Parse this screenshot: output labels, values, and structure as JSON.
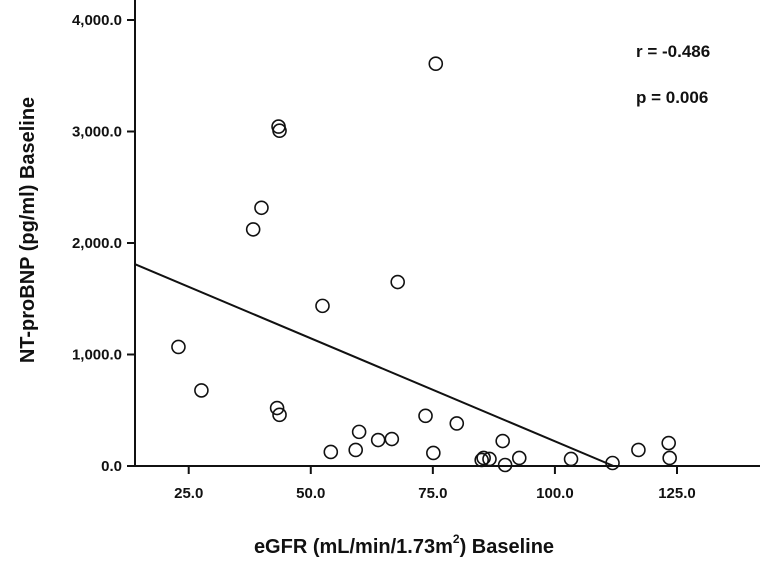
{
  "chart_data": {
    "type": "scatter",
    "xlabel": "eGFR (mL/min/1.73m",
    "xlabel_sup": "2",
    "xlabel_tail": ") Baseline",
    "ylabel": "NT-proBNP (pg/ml) Baseline",
    "xlim": [
      14,
      142
    ],
    "ylim": [
      0,
      4000
    ],
    "x_ticks": [
      25,
      50,
      75,
      100,
      125
    ],
    "x_tick_labels": [
      "25.0",
      "50.0",
      "75.0",
      "100.0",
      "125.0"
    ],
    "y_ticks": [
      0,
      1000,
      2000,
      3000,
      4000
    ],
    "y_tick_labels": [
      "0.0",
      "1,000.0",
      "2,000.0",
      "3,000.0",
      "4,000.0"
    ],
    "annotations": [
      "r = -0.486",
      "p = 0.006"
    ],
    "fit_line": {
      "x": [
        14,
        112
      ],
      "y": [
        1810,
        0
      ]
    },
    "points": [
      {
        "x": 22.9,
        "y": 1068
      },
      {
        "x": 27.6,
        "y": 678
      },
      {
        "x": 38.2,
        "y": 2122
      },
      {
        "x": 39.9,
        "y": 2316
      },
      {
        "x": 43.1,
        "y": 520
      },
      {
        "x": 43.4,
        "y": 3044
      },
      {
        "x": 43.6,
        "y": 3007
      },
      {
        "x": 43.6,
        "y": 459
      },
      {
        "x": 52.4,
        "y": 1436
      },
      {
        "x": 54.1,
        "y": 126
      },
      {
        "x": 59.2,
        "y": 144
      },
      {
        "x": 59.9,
        "y": 306
      },
      {
        "x": 63.8,
        "y": 233
      },
      {
        "x": 66.6,
        "y": 242
      },
      {
        "x": 67.8,
        "y": 1650
      },
      {
        "x": 73.5,
        "y": 450
      },
      {
        "x": 75.1,
        "y": 117
      },
      {
        "x": 75.6,
        "y": 3608
      },
      {
        "x": 79.9,
        "y": 382
      },
      {
        "x": 85.0,
        "y": 54
      },
      {
        "x": 85.4,
        "y": 72
      },
      {
        "x": 86.6,
        "y": 63
      },
      {
        "x": 89.3,
        "y": 224
      },
      {
        "x": 89.8,
        "y": 9
      },
      {
        "x": 92.7,
        "y": 72
      },
      {
        "x": 103.3,
        "y": 63
      },
      {
        "x": 111.8,
        "y": 27
      },
      {
        "x": 117.1,
        "y": 144
      },
      {
        "x": 123.3,
        "y": 206
      },
      {
        "x": 123.5,
        "y": 72
      }
    ]
  }
}
